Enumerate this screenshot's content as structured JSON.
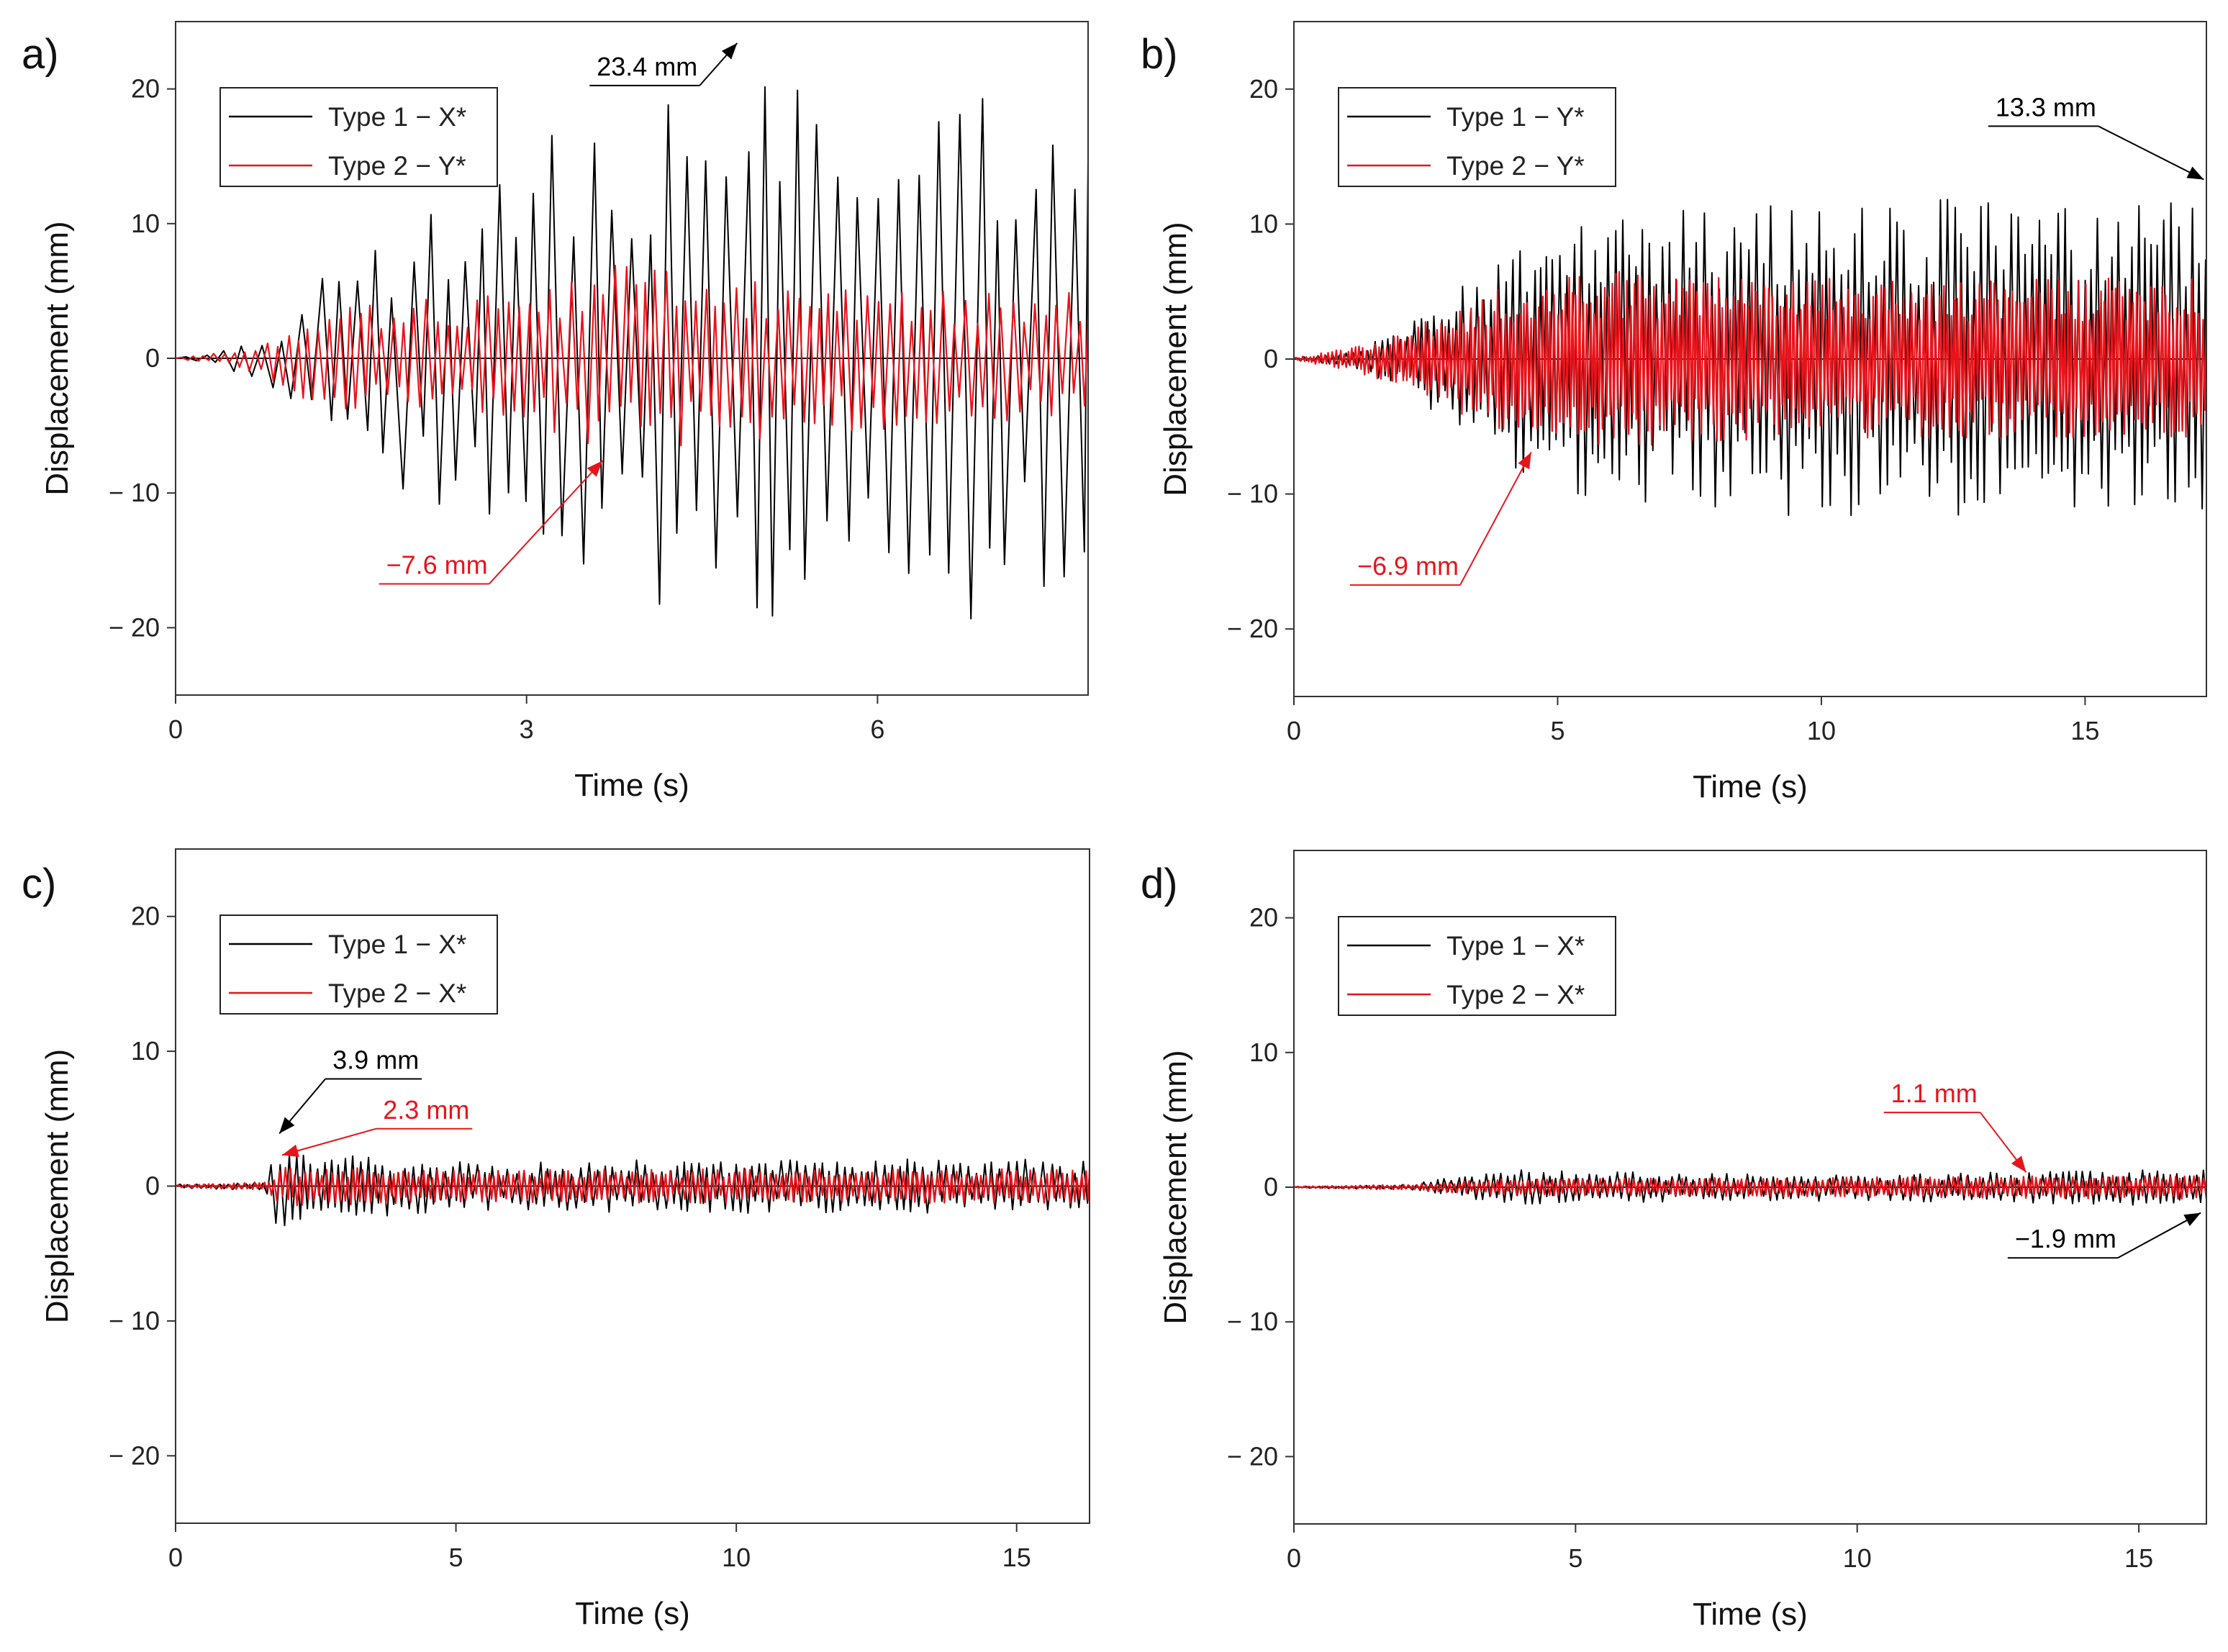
{
  "colors": {
    "series1": "#000000",
    "series2": "#e8141b",
    "axis": "#333333"
  },
  "chart_data": [
    {
      "panel": "a)",
      "type": "line",
      "xlabel": "Time (s)",
      "ylabel": "Displacement (mm)",
      "xlim": [
        0,
        7.8
      ],
      "ylim": [
        -25,
        25
      ],
      "xticks": [
        0,
        3,
        6
      ],
      "xtick_labels": [
        "0",
        "3",
        "6"
      ],
      "yticks": [
        20,
        10,
        0,
        -10,
        -20
      ],
      "ytick_labels": [
        "20",
        "10",
        "0",
        "− 10",
        "− 20"
      ],
      "legend": [
        "Type 1 − X*",
        "Type 2 − Y*"
      ],
      "series": [
        {
          "name": "Type 1 − X*",
          "color": "#000000",
          "period": 0.16,
          "envelope": [
            [
              0,
              0.1
            ],
            [
              0.3,
              0.4
            ],
            [
              0.9,
              2.5
            ],
            [
              1.2,
              6
            ],
            [
              2.0,
              10
            ],
            [
              2.5,
              12
            ],
            [
              3.0,
              15
            ],
            [
              3.5,
              19
            ],
            [
              4.5,
              19
            ],
            [
              4.8,
              21
            ],
            [
              6.0,
              20
            ],
            [
              7.0,
              20
            ],
            [
              7.8,
              17
            ]
          ]
        },
        {
          "name": "Type 2 − Y*",
          "color": "#e8141b",
          "period": 0.09,
          "envelope": [
            [
              0,
              0.1
            ],
            [
              0.5,
              0.5
            ],
            [
              0.9,
              2
            ],
            [
              1.2,
              3.5
            ],
            [
              2.0,
              4.5
            ],
            [
              3.0,
              5.5
            ],
            [
              3.7,
              7
            ],
            [
              5.0,
              6
            ],
            [
              6.0,
              5.5
            ],
            [
              7.0,
              5
            ],
            [
              7.8,
              5
            ]
          ]
        }
      ],
      "annotations": [
        {
          "text": "23.4 mm",
          "x": 4.8,
          "y": 23.4,
          "label_x": 3.6,
          "label_y": 21,
          "series": 1
        },
        {
          "text": "−7.6 mm",
          "x": 3.65,
          "y": -7.6,
          "label_x": 1.8,
          "label_y": -16,
          "series": 2
        }
      ]
    },
    {
      "panel": "b)",
      "type": "line",
      "xlabel": "Time (s)",
      "ylabel": "Displacement (mm)",
      "xlim": [
        0,
        17.3
      ],
      "ylim": [
        -25,
        25
      ],
      "xticks": [
        0,
        5,
        10,
        15
      ],
      "xtick_labels": [
        "0",
        "5",
        "10",
        "15"
      ],
      "yticks": [
        20,
        10,
        0,
        -10,
        -20
      ],
      "ytick_labels": [
        "20",
        "10",
        "0",
        "− 10",
        "− 20"
      ],
      "legend": [
        "Type 1 − Y*",
        "Type 2 − Y*"
      ],
      "series": [
        {
          "name": "Type 1 − Y*",
          "color": "#000000",
          "period": 0.13,
          "envelope": [
            [
              0,
              0.1
            ],
            [
              1,
              0.5
            ],
            [
              2,
              2
            ],
            [
              3,
              5
            ],
            [
              4,
              8
            ],
            [
              5,
              10
            ],
            [
              7,
              11
            ],
            [
              10,
              12
            ],
            [
              13,
              12
            ],
            [
              15,
              11
            ],
            [
              17.3,
              12
            ]
          ]
        },
        {
          "name": "Type 2 − Y*",
          "color": "#e8141b",
          "period": 0.07,
          "envelope": [
            [
              0,
              0.1
            ],
            [
              1,
              0.8
            ],
            [
              2,
              2
            ],
            [
              3,
              4
            ],
            [
              4.5,
              6
            ],
            [
              6,
              6.5
            ],
            [
              10,
              6
            ],
            [
              17.3,
              6
            ]
          ]
        }
      ],
      "annotations": [
        {
          "text": "13.3 mm",
          "x": 17.25,
          "y": 13.3,
          "label_x": 13.3,
          "label_y": 18,
          "series": 1
        },
        {
          "text": "−6.9 mm",
          "x": 4.5,
          "y": -6.9,
          "label_x": 1.2,
          "label_y": -16,
          "series": 2
        }
      ]
    },
    {
      "panel": "c)",
      "type": "line",
      "xlabel": "Time (s)",
      "ylabel": "Displacement (mm)",
      "xlim": [
        0,
        16.3
      ],
      "ylim": [
        -25,
        25
      ],
      "xticks": [
        0,
        5,
        10,
        15
      ],
      "xtick_labels": [
        "0",
        "5",
        "10",
        "15"
      ],
      "yticks": [
        20,
        10,
        0,
        -10,
        -20
      ],
      "ytick_labels": [
        "20",
        "10",
        "0",
        "− 10",
        "− 20"
      ],
      "legend": [
        "Type 1 − X*",
        "Type 2 − X*"
      ],
      "series": [
        {
          "name": "Type 1 − X*",
          "color": "#000000",
          "period": 0.14,
          "envelope": [
            [
              0,
              0.15
            ],
            [
              1.6,
              0.3
            ],
            [
              1.8,
              3
            ],
            [
              3,
              2.5
            ],
            [
              5,
              1.8
            ],
            [
              8,
              2
            ],
            [
              10,
              2
            ],
            [
              16.3,
              2
            ]
          ]
        },
        {
          "name": "Type 2 − X*",
          "color": "#e8141b",
          "period": 0.09,
          "envelope": [
            [
              0,
              0.1
            ],
            [
              1.6,
              0.3
            ],
            [
              1.9,
              1.5
            ],
            [
              5,
              1.2
            ],
            [
              10,
              1.3
            ],
            [
              16.3,
              1.3
            ]
          ]
        }
      ],
      "annotations": [
        {
          "text": "3.9 mm",
          "x": 1.85,
          "y": 3.9,
          "label_x": 2.8,
          "label_y": 8.7,
          "series": 1
        },
        {
          "text": "2.3 mm",
          "x": 1.9,
          "y": 2.3,
          "label_x": 3.7,
          "label_y": 5,
          "series": 2
        }
      ]
    },
    {
      "panel": "d)",
      "type": "line",
      "xlabel": "Time (s)",
      "ylabel": "Displacement (mm)",
      "xlim": [
        0,
        16.2
      ],
      "ylim": [
        -25,
        25
      ],
      "xticks": [
        0,
        5,
        10,
        15
      ],
      "xtick_labels": [
        "0",
        "5",
        "10",
        "15"
      ],
      "yticks": [
        20,
        10,
        0,
        -10,
        -20
      ],
      "ytick_labels": [
        "20",
        "10",
        "0",
        "− 10",
        "− 20"
      ],
      "legend": [
        "Type 1 − X*",
        "Type 2 − X*"
      ],
      "series": [
        {
          "name": "Type 1 − X*",
          "color": "#000000",
          "period": 0.12,
          "envelope": [
            [
              0,
              0.05
            ],
            [
              2,
              0.2
            ],
            [
              3.2,
              1
            ],
            [
              4,
              1.3
            ],
            [
              8,
              1
            ],
            [
              12,
              1.1
            ],
            [
              16.2,
              1.5
            ]
          ]
        },
        {
          "name": "Type 2 − X*",
          "color": "#e8141b",
          "period": 0.08,
          "envelope": [
            [
              0,
              0.05
            ],
            [
              2,
              0.2
            ],
            [
              3.2,
              0.6
            ],
            [
              8,
              0.7
            ],
            [
              12,
              0.8
            ],
            [
              16.2,
              0.9
            ]
          ]
        }
      ],
      "annotations": [
        {
          "text": "1.1 mm",
          "x": 13.0,
          "y": 1.1,
          "label_x": 10.6,
          "label_y": 6.3,
          "series": 2
        },
        {
          "text": "−1.9 mm",
          "x": 16.1,
          "y": -1.9,
          "label_x": 12.8,
          "label_y": -4.5,
          "series": 1
        }
      ]
    }
  ]
}
